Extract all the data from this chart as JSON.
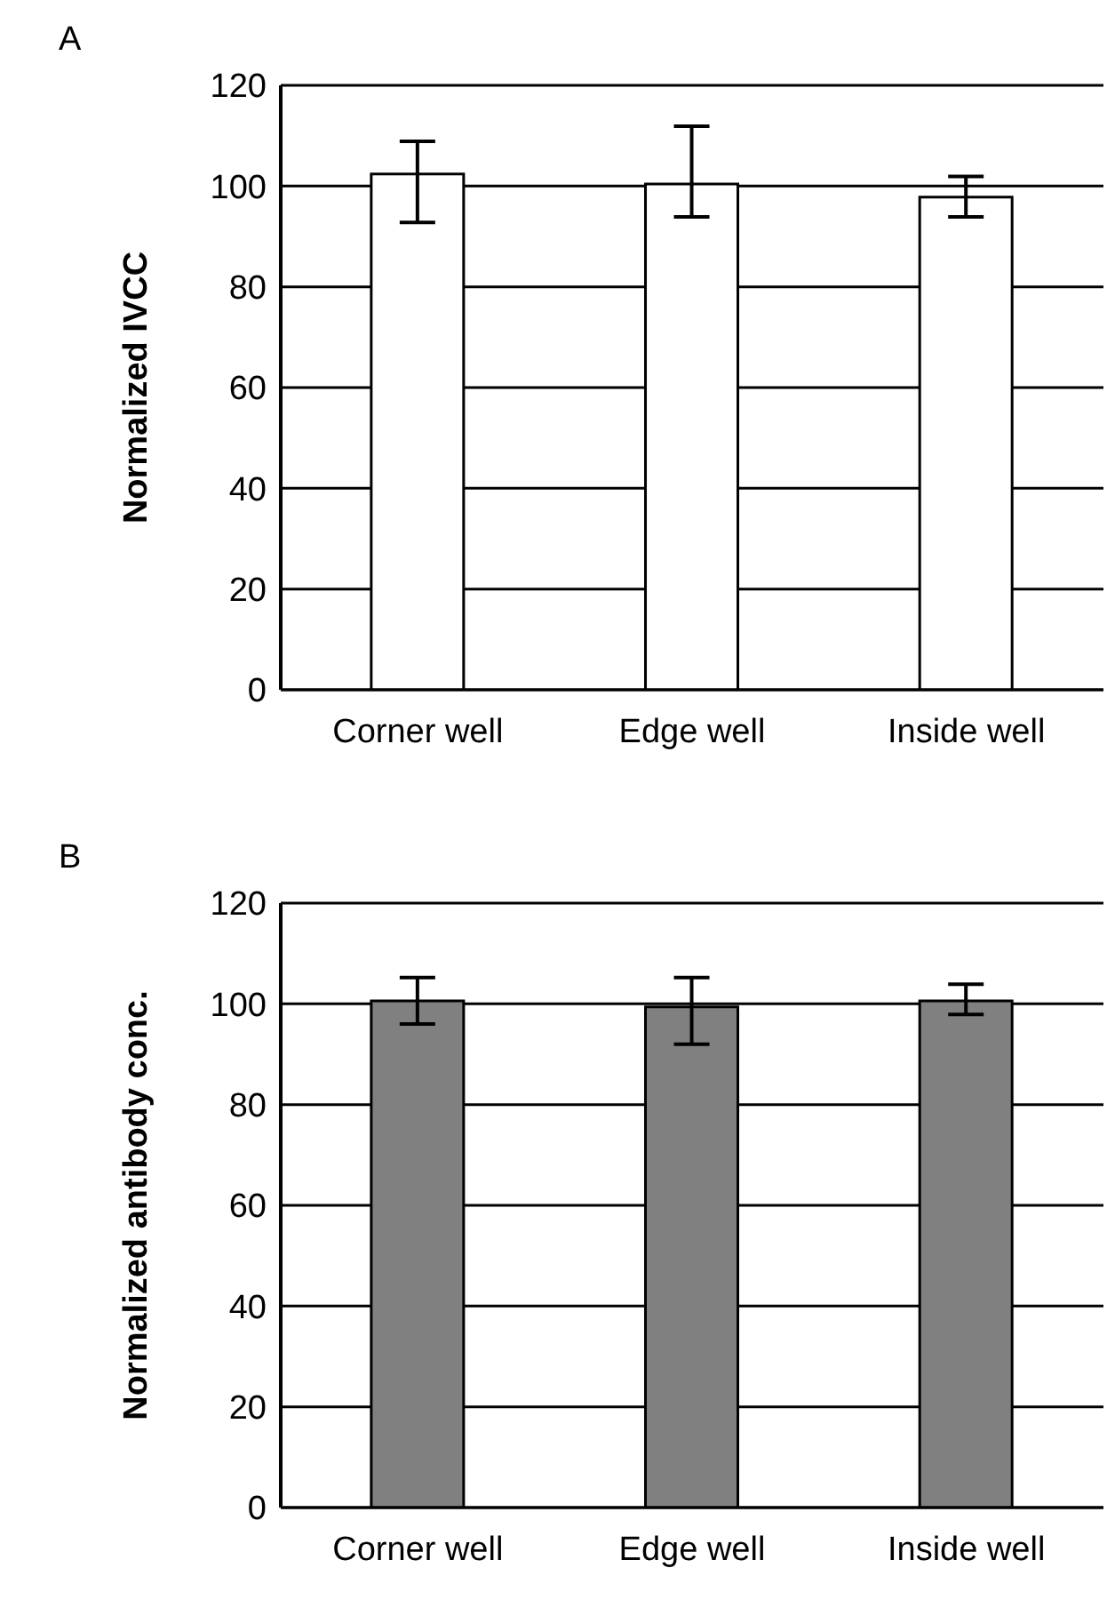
{
  "chart_data": [
    {
      "type": "bar",
      "title": "A",
      "ylabel": "Normalized IVCC",
      "categories": [
        "Corner well",
        "Edge well",
        "Inside well"
      ],
      "values": [
        102.4,
        100.4,
        97.8
      ],
      "errors": [
        [
          92.8,
          108.9
        ],
        [
          93.9,
          111.9
        ],
        [
          93.9,
          101.9
        ]
      ],
      "color": "#ffffff",
      "ylim": [
        0,
        120
      ],
      "yticks": [
        0,
        20,
        40,
        60,
        80,
        100,
        120
      ],
      "grid": "y",
      "legend": false
    },
    {
      "type": "bar",
      "title": "B",
      "ylabel": "Normalized antibody conc.",
      "categories": [
        "Corner well",
        "Edge well",
        "Inside well"
      ],
      "values": [
        100.6,
        99.4,
        100.6
      ],
      "errors": [
        [
          96,
          105.2
        ],
        [
          92,
          105.2
        ],
        [
          97.9,
          103.9
        ]
      ],
      "color": "#808080",
      "ylim": [
        0,
        120
      ],
      "yticks": [
        0,
        20,
        40,
        60,
        80,
        100,
        120
      ],
      "grid": "y",
      "legend": false
    }
  ]
}
